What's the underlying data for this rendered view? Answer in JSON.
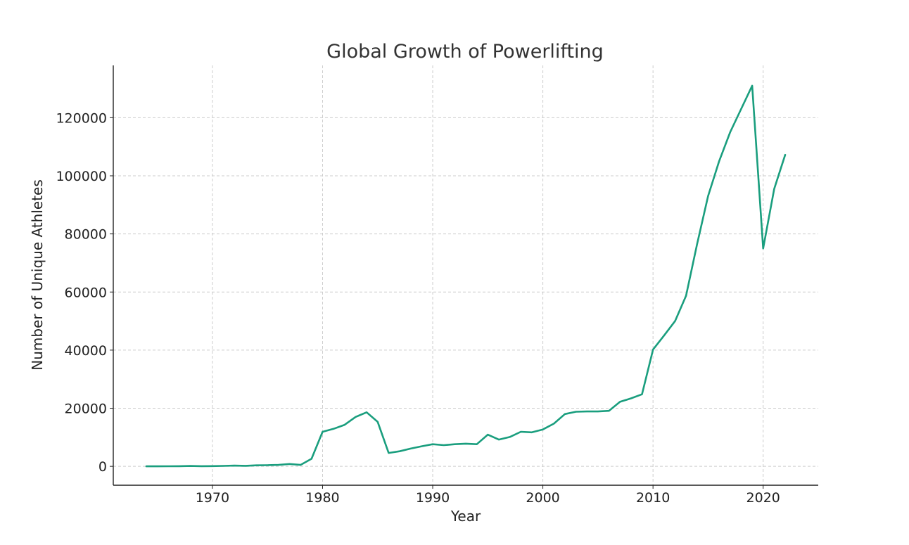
{
  "chart_data": {
    "type": "line",
    "title": "Global Growth of Powerlifting",
    "xlabel": "Year",
    "ylabel": "Number of Unique Athletes",
    "xlim": [
      1961,
      2025
    ],
    "ylim": [
      -6500,
      138000
    ],
    "xticks": [
      1970,
      1980,
      1990,
      2000,
      2010,
      2020
    ],
    "yticks": [
      0,
      20000,
      40000,
      60000,
      80000,
      100000,
      120000
    ],
    "grid": true,
    "color": "#1a9e7e",
    "series": [
      {
        "name": "Unique Athletes",
        "x": [
          1964,
          1965,
          1966,
          1967,
          1968,
          1969,
          1970,
          1971,
          1972,
          1973,
          1974,
          1975,
          1976,
          1977,
          1978,
          1979,
          1980,
          1981,
          1982,
          1983,
          1984,
          1985,
          1986,
          1987,
          1988,
          1989,
          1990,
          1991,
          1992,
          1993,
          1994,
          1995,
          1996,
          1997,
          1998,
          1999,
          2000,
          2001,
          2002,
          2003,
          2004,
          2005,
          2006,
          2007,
          2008,
          2009,
          2010,
          2011,
          2012,
          2013,
          2014,
          2015,
          2016,
          2017,
          2018,
          2019,
          2020,
          2021,
          2022
        ],
        "values": [
          0,
          20,
          40,
          60,
          120,
          50,
          80,
          150,
          250,
          180,
          350,
          400,
          500,
          800,
          500,
          2600,
          11900,
          12900,
          14300,
          17000,
          18600,
          15300,
          4600,
          5200,
          6100,
          6900,
          7600,
          7300,
          7600,
          7800,
          7600,
          10900,
          9200,
          10100,
          11900,
          11700,
          12700,
          14700,
          18000,
          18800,
          18900,
          18900,
          19100,
          22200,
          23400,
          24800,
          40200,
          45000,
          50000,
          58700,
          76500,
          93000,
          105000,
          115000,
          123000,
          131000,
          75000,
          95500,
          107200
        ]
      }
    ]
  }
}
